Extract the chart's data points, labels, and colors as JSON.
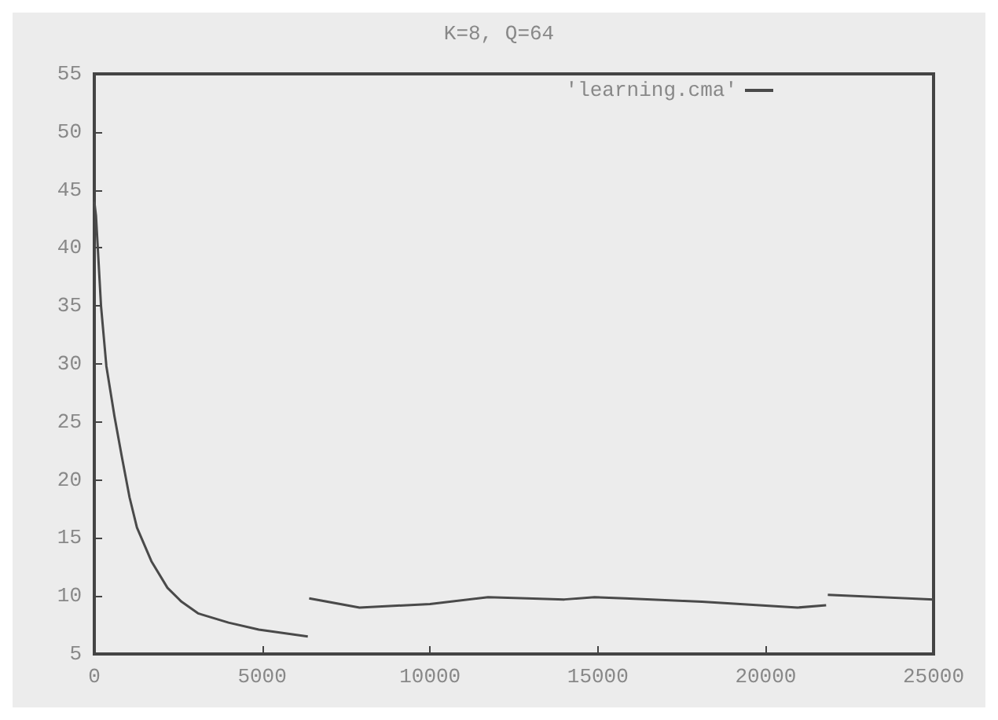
{
  "chart_data": {
    "type": "line",
    "title": "K=8, Q=64",
    "x": [
      0,
      50,
      200,
      360,
      600,
      820,
      1050,
      1270,
      1700,
      2180,
      2600,
      3090,
      4000,
      4900,
      6360,
      6380,
      6400,
      7900,
      10000,
      11730,
      14000,
      14900,
      15800,
      18100,
      20950,
      21800,
      21820,
      21850,
      25000
    ],
    "series": [
      {
        "name": "'learning.cma'",
        "color": "#4a4a4a",
        "values": [
          44,
          42.8,
          35,
          29.8,
          25.5,
          22,
          18.5,
          15.9,
          13,
          10.7,
          9.5,
          8.5,
          7.7,
          7.1,
          6.5,
          null,
          9.8,
          9,
          9.3,
          9.9,
          9.7,
          9.9,
          9.8,
          9.5,
          9,
          9.2,
          null,
          10.1,
          9.7
        ]
      }
    ],
    "xlim": [
      0,
      25000
    ],
    "xticks": [
      0,
      5000,
      10000,
      15000,
      20000,
      25000
    ],
    "ylim": [
      5,
      55
    ],
    "yticks": [
      5,
      10,
      15,
      20,
      25,
      30,
      35,
      40,
      45,
      50,
      55
    ],
    "grid": false,
    "legend": "top right",
    "marker": "none",
    "line_style": "solid"
  }
}
